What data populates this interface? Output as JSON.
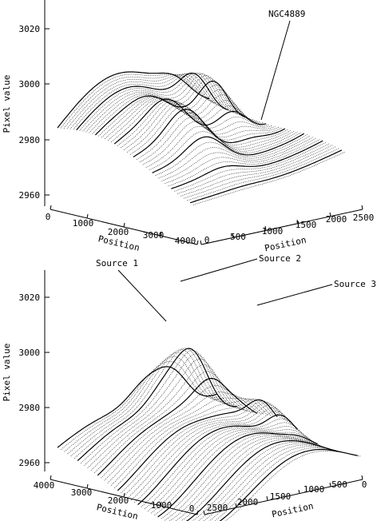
{
  "chart_data": [
    {
      "type": "surface",
      "zlabel": "Pixel value",
      "zticks": [
        "2960",
        "2980",
        "3000",
        "3020"
      ],
      "zlim": [
        2960,
        3030
      ],
      "axis_left": {
        "label": "Position",
        "ticks": [
          "0",
          "1000",
          "2000",
          "3000",
          "4000"
        ],
        "range": [
          0,
          4000
        ]
      },
      "axis_right": {
        "label": "Position",
        "ticks": [
          "0",
          "500",
          "1000",
          "1500",
          "2000",
          "2500"
        ],
        "range": [
          0,
          2500
        ]
      },
      "annotations": [
        {
          "text": "NGC4889"
        }
      ]
    },
    {
      "type": "surface",
      "zlabel": "Pixel value",
      "zticks": [
        "2960",
        "2980",
        "3000",
        "3020"
      ],
      "zlim": [
        2960,
        3030
      ],
      "axis_left": {
        "label": "Position",
        "ticks": [
          "4000",
          "3000",
          "2000",
          "1000",
          "0"
        ],
        "range": [
          4000,
          0
        ]
      },
      "axis_right": {
        "label": "Position",
        "ticks": [
          "2500",
          "2000",
          "1500",
          "1000",
          "500",
          "0"
        ],
        "range": [
          2500,
          0
        ]
      },
      "annotations": [
        {
          "text": "Source 1"
        },
        {
          "text": "Source 2"
        },
        {
          "text": "Source 3"
        }
      ]
    }
  ]
}
